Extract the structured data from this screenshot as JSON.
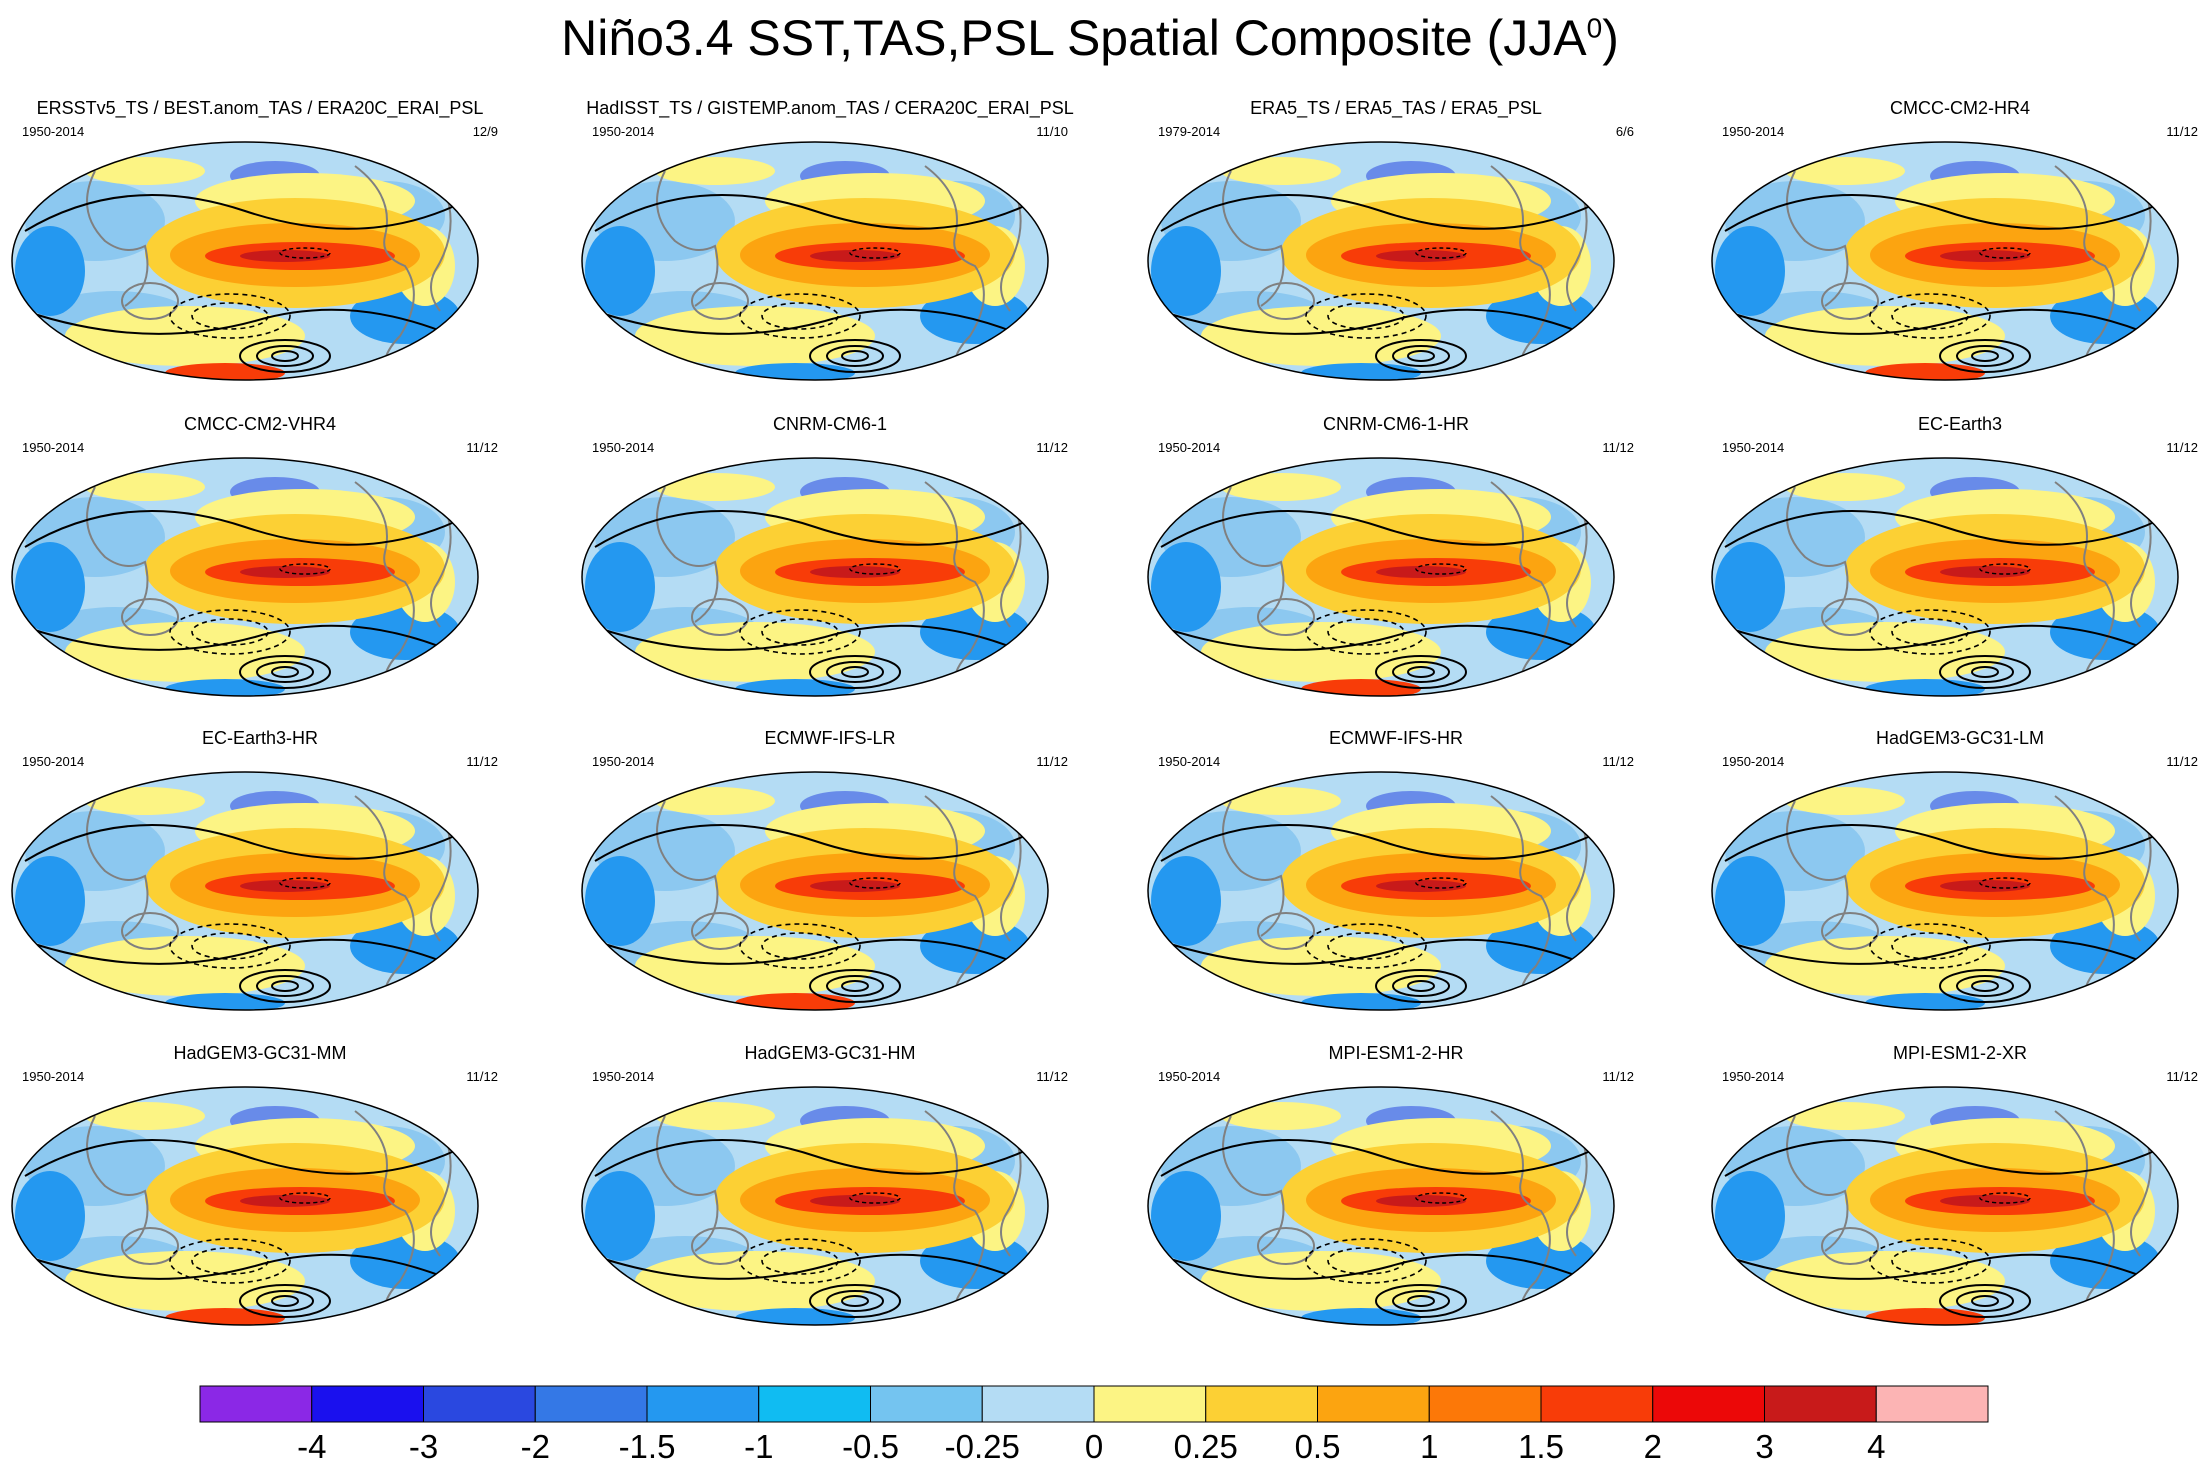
{
  "figure": {
    "title_main": "Niño3.4 SST,TAS,PSL Spatial Composite (JJA",
    "title_sup": "0",
    "title_close": ")"
  },
  "chart_data": {
    "type": "heatmap",
    "projection": "robinson-pacific-centered",
    "panels": [
      {
        "title": "ERSSTv5_TS / BEST.anom_TAS / ERA20C_ERAI_PSL",
        "years": "1950-2014",
        "count": "12/9"
      },
      {
        "title": "HadISST_TS / GISTEMP.anom_TAS / CERA20C_ERAI_PSL",
        "years": "1950-2014",
        "count": "11/10"
      },
      {
        "title": "ERA5_TS / ERA5_TAS / ERA5_PSL",
        "years": "1979-2014",
        "count": "6/6"
      },
      {
        "title": "CMCC-CM2-HR4",
        "years": "1950-2014",
        "count": "11/12"
      },
      {
        "title": "CMCC-CM2-VHR4",
        "years": "1950-2014",
        "count": "11/12"
      },
      {
        "title": "CNRM-CM6-1",
        "years": "1950-2014",
        "count": "11/12"
      },
      {
        "title": "CNRM-CM6-1-HR",
        "years": "1950-2014",
        "count": "11/12"
      },
      {
        "title": "EC-Earth3",
        "years": "1950-2014",
        "count": "11/12"
      },
      {
        "title": "EC-Earth3-HR",
        "years": "1950-2014",
        "count": "11/12"
      },
      {
        "title": "ECMWF-IFS-LR",
        "years": "1950-2014",
        "count": "11/12"
      },
      {
        "title": "ECMWF-IFS-HR",
        "years": "1950-2014",
        "count": "11/12"
      },
      {
        "title": "HadGEM3-GC31-LM",
        "years": "1950-2014",
        "count": "11/12"
      },
      {
        "title": "HadGEM3-GC31-MM",
        "years": "1950-2014",
        "count": "11/12"
      },
      {
        "title": "HadGEM3-GC31-HM",
        "years": "1950-2014",
        "count": "11/12"
      },
      {
        "title": "MPI-ESM1-2-HR",
        "years": "1950-2014",
        "count": "11/12"
      },
      {
        "title": "MPI-ESM1-2-XR",
        "years": "1950-2014",
        "count": "11/12"
      }
    ],
    "colorbar": {
      "levels": [
        "-4",
        "-3",
        "-2",
        "-1.5",
        "-1",
        "-0.5",
        "-0.25",
        "0",
        "0.25",
        "0.5",
        "1",
        "1.5",
        "2",
        "3",
        "4"
      ],
      "colors": [
        "#8B28E6",
        "#1A10EE",
        "#2A48E0",
        "#3478E6",
        "#2498F0",
        "#10BCF2",
        "#74C4F0",
        "#B4DCF4",
        "#FCF484",
        "#FCD034",
        "#FCA410",
        "#FC7808",
        "#F83C08",
        "#EC0808",
        "#C81A1A",
        "#FCB4B4"
      ]
    },
    "field_colors": {
      "ocean_cool": "#8CC8F0",
      "ocean_mild": "#B4DCF4",
      "neutral_warm": "#FCF484",
      "warm": "#FCD034",
      "hot": "#FCA410",
      "hotter": "#F83C08",
      "core": "#C81A1A",
      "cold": "#2498F0",
      "very_cold": "#2A48E0",
      "contour": "#000000",
      "coastline": "#808080"
    }
  }
}
